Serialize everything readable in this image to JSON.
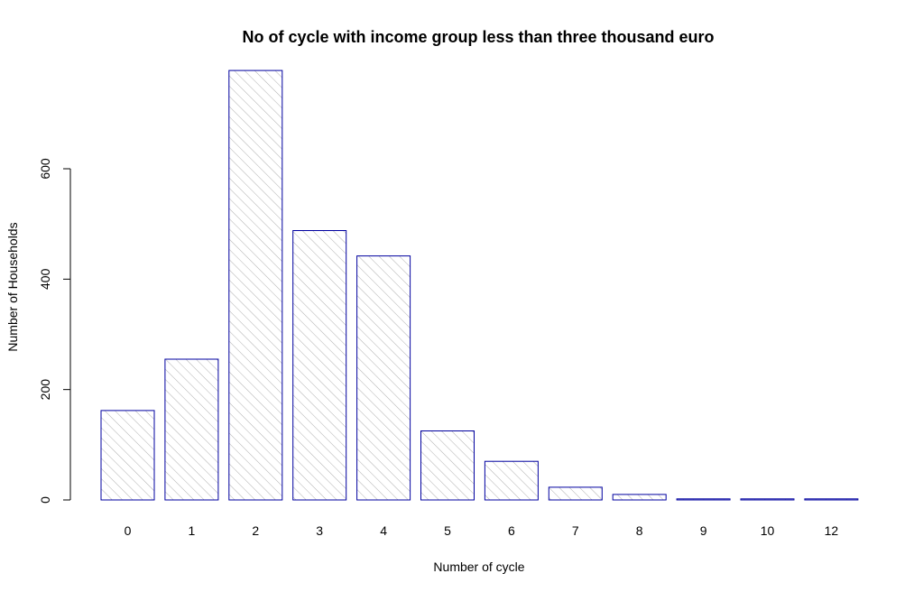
{
  "chart_data": {
    "type": "bar",
    "title": "No of cycle with income group less than three thousand euro",
    "xlabel": "Number of cycle",
    "ylabel": "Number of Households",
    "categories": [
      "0",
      "1",
      "2",
      "3",
      "4",
      "5",
      "6",
      "7",
      "8",
      "9",
      "10",
      "12"
    ],
    "values": [
      162,
      255,
      778,
      488,
      442,
      125,
      70,
      23,
      10,
      2,
      2,
      2
    ],
    "ylim": [
      0,
      780
    ],
    "yticks": [
      "0",
      "200",
      "400",
      "600"
    ],
    "grid": false,
    "legend": "none",
    "bar_fill": "hatched",
    "colors": {
      "bar_border": "#0000a0",
      "hatch": "#b0b0b0",
      "axis": "#000000"
    }
  }
}
